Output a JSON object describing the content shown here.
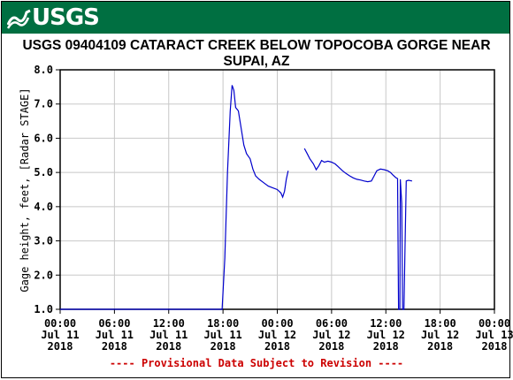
{
  "banner": {
    "logo_text": "USGS",
    "color": "#006f41"
  },
  "chart_data": {
    "type": "line",
    "title": "USGS 09404109 CATARACT CREEK BELOW TOPOCOBA GORGE NEAR SUPAI, AZ",
    "ylabel": "Gage height, feet, [Radar STAGE]",
    "xlabel": "",
    "ylim": [
      1.0,
      8.0
    ],
    "yticks": [
      "1.0",
      "2.0",
      "3.0",
      "4.0",
      "5.0",
      "6.0",
      "7.0",
      "8.0"
    ],
    "xlim_hours": [
      0,
      48
    ],
    "xticks": [
      [
        "00:00",
        "Jul 11",
        "2018"
      ],
      [
        "06:00",
        "Jul 11",
        "2018"
      ],
      [
        "12:00",
        "Jul 11",
        "2018"
      ],
      [
        "18:00",
        "Jul 11",
        "2018"
      ],
      [
        "00:00",
        "Jul 12",
        "2018"
      ],
      [
        "06:00",
        "Jul 12",
        "2018"
      ],
      [
        "12:00",
        "Jul 12",
        "2018"
      ],
      [
        "18:00",
        "Jul 12",
        "2018"
      ],
      [
        "00:00",
        "Jul 13",
        "2018"
      ]
    ],
    "grid": true,
    "line_color": "#0000cc",
    "series": [
      {
        "segments": [
          [
            [
              0,
              1.0
            ],
            [
              17.9,
              1.0
            ],
            [
              18.2,
              2.5
            ],
            [
              18.5,
              5.0
            ],
            [
              18.8,
              6.8
            ],
            [
              19.0,
              7.55
            ],
            [
              19.2,
              7.4
            ],
            [
              19.4,
              6.9
            ],
            [
              19.7,
              6.8
            ],
            [
              20.0,
              6.3
            ],
            [
              20.3,
              5.8
            ],
            [
              20.6,
              5.55
            ],
            [
              21.0,
              5.4
            ],
            [
              21.3,
              5.1
            ],
            [
              21.6,
              4.9
            ],
            [
              22.0,
              4.8
            ],
            [
              22.5,
              4.7
            ],
            [
              23.0,
              4.6
            ],
            [
              23.5,
              4.55
            ],
            [
              24.0,
              4.5
            ],
            [
              24.4,
              4.4
            ],
            [
              24.6,
              4.28
            ],
            [
              24.8,
              4.45
            ],
            [
              25.0,
              4.8
            ],
            [
              25.2,
              5.05
            ]
          ],
          [
            [
              27.0,
              5.7
            ],
            [
              27.3,
              5.55
            ],
            [
              27.6,
              5.4
            ],
            [
              28.0,
              5.25
            ],
            [
              28.3,
              5.08
            ],
            [
              28.6,
              5.2
            ],
            [
              28.9,
              5.35
            ],
            [
              29.2,
              5.3
            ],
            [
              29.6,
              5.33
            ],
            [
              30.0,
              5.3
            ],
            [
              30.4,
              5.25
            ],
            [
              30.8,
              5.15
            ],
            [
              31.2,
              5.05
            ],
            [
              31.6,
              4.97
            ],
            [
              32.0,
              4.9
            ],
            [
              32.4,
              4.84
            ],
            [
              32.8,
              4.8
            ],
            [
              33.2,
              4.78
            ],
            [
              33.6,
              4.75
            ],
            [
              34.0,
              4.73
            ],
            [
              34.4,
              4.75
            ],
            [
              34.7,
              4.9
            ],
            [
              35.0,
              5.05
            ],
            [
              35.4,
              5.1
            ],
            [
              35.8,
              5.08
            ],
            [
              36.2,
              5.05
            ],
            [
              36.5,
              5.0
            ],
            [
              36.8,
              4.92
            ],
            [
              37.1,
              4.85
            ],
            [
              37.3,
              4.82
            ],
            [
              37.4,
              1.0
            ],
            [
              37.55,
              1.0
            ],
            [
              37.6,
              4.8
            ],
            [
              37.75,
              4.1
            ],
            [
              37.85,
              1.0
            ],
            [
              38.0,
              1.0
            ],
            [
              38.1,
              2.5
            ],
            [
              38.25,
              4.75
            ],
            [
              38.5,
              4.77
            ],
            [
              38.9,
              4.75
            ]
          ]
        ]
      }
    ]
  },
  "footnote": "---- Provisional Data Subject to Revision ----"
}
